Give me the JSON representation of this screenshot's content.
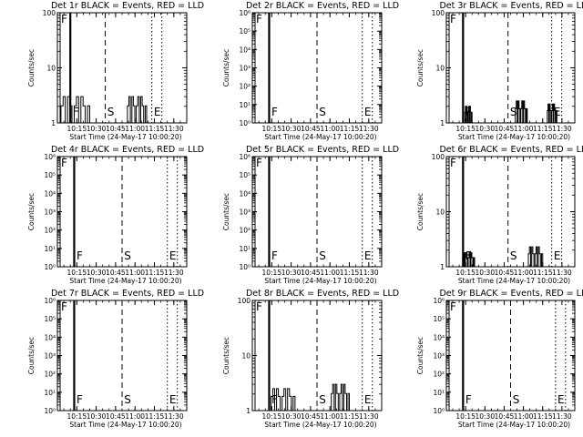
{
  "chart_data": [
    {
      "type": "line",
      "title": "Det 1r BLACK = Events, RED = LLD",
      "scale": "log",
      "ylim": [
        1,
        100
      ],
      "ytick_labels": [
        "1",
        "10",
        "100"
      ],
      "xtick_labels": [
        "10:15",
        "10:30",
        "10:45",
        "11:00",
        "11:15",
        "11:30"
      ],
      "xlabel": "Start Time (24-May-17 10:00:20)",
      "ylabel": "Counts/sec",
      "markers": [
        {
          "label": "F",
          "t": "10:10"
        },
        {
          "label": "S",
          "t": "10:37"
        },
        {
          "label": "E",
          "t": "11:13"
        }
      ],
      "bursts": [
        {
          "t0": "10:01",
          "t1": "10:25",
          "level": 3
        },
        {
          "t0": "10:53",
          "t1": "11:09",
          "level": 3
        }
      ]
    },
    {
      "type": "line",
      "title": "Det 2r BLACK = Events, RED = LLD",
      "scale": "log",
      "ylim": [
        1,
        1000000
      ],
      "ytick_labels": [
        "10⁰",
        "10¹",
        "10²",
        "10³",
        "10⁴",
        "10⁵",
        "10⁶"
      ],
      "xtick_labels": [
        "10:15",
        "10:30",
        "10:45",
        "11:00",
        "11:15",
        "11:30"
      ],
      "xlabel": "Start Time (24-May-17 10:00:20)",
      "ylabel": "Counts/sec",
      "markers": [
        {
          "label": "F",
          "t": "10:13"
        },
        {
          "label": "S",
          "t": "10:50"
        },
        {
          "label": "E",
          "t": "11:25"
        }
      ],
      "bursts": []
    },
    {
      "type": "line",
      "title": "Det 3r BLACK = Events, RED = LLD",
      "scale": "log",
      "ylim": [
        1,
        100
      ],
      "ytick_labels": [
        "1",
        "10",
        "100"
      ],
      "xtick_labels": [
        "10:15",
        "10:30",
        "10:45",
        "11:00",
        "11:15",
        "11:30"
      ],
      "xlabel": "Start Time (24-May-17 10:00:20)",
      "ylabel": "Counts/sec",
      "markers": [
        {
          "label": "F",
          "t": "10:13"
        },
        {
          "label": "S",
          "t": "10:48"
        },
        {
          "label": "E",
          "t": "11:22"
        }
      ],
      "bursts": [
        {
          "t0": "10:14",
          "t1": "10:20",
          "level": 2
        },
        {
          "t0": "10:53",
          "t1": "11:03",
          "level": 2.5
        },
        {
          "t0": "11:18",
          "t1": "11:26",
          "level": 2.2
        }
      ]
    },
    {
      "type": "line",
      "title": "Det 4r BLACK = Events, RED = LLD",
      "scale": "log",
      "ylim": [
        1,
        1000000
      ],
      "ytick_labels": [
        "10⁰",
        "10¹",
        "10²",
        "10³",
        "10⁴",
        "10⁵",
        "10⁶"
      ],
      "xtick_labels": [
        "10:15",
        "10:30",
        "10:45",
        "11:00",
        "11:15",
        "11:30"
      ],
      "xlabel": "Start Time (24-May-17 10:00:20)",
      "ylabel": "Counts/sec",
      "markers": [
        {
          "label": "F",
          "t": "10:13"
        },
        {
          "label": "S",
          "t": "10:50"
        },
        {
          "label": "E",
          "t": "11:25"
        }
      ],
      "bursts": []
    },
    {
      "type": "line",
      "title": "Det 5r BLACK = Events, RED = LLD",
      "scale": "log",
      "ylim": [
        1,
        1000000
      ],
      "ytick_labels": [
        "10⁰",
        "10¹",
        "10²",
        "10³",
        "10⁴",
        "10⁵",
        "10⁶"
      ],
      "xtick_labels": [
        "10:15",
        "10:30",
        "10:45",
        "11:00",
        "11:15",
        "11:30"
      ],
      "xlabel": "Start Time (24-May-17 10:00:20)",
      "ylabel": "Counts/sec",
      "markers": [
        {
          "label": "F",
          "t": "10:13"
        },
        {
          "label": "S",
          "t": "10:50"
        },
        {
          "label": "E",
          "t": "11:25"
        }
      ],
      "bursts": []
    },
    {
      "type": "line",
      "title": "Det 6r BLACK = Events, RED = LLD",
      "scale": "log",
      "ylim": [
        1,
        100
      ],
      "ytick_labels": [
        "1",
        "10",
        "100"
      ],
      "xtick_labels": [
        "10:15",
        "10:30",
        "10:45",
        "11:00",
        "11:15",
        "11:30"
      ],
      "xlabel": "Start Time (24-May-17 10:00:20)",
      "ylabel": "Counts/sec",
      "markers": [
        {
          "label": "F",
          "t": "10:13"
        },
        {
          "label": "S",
          "t": "10:48"
        },
        {
          "label": "E",
          "t": "11:22"
        }
      ],
      "bursts": [
        {
          "t0": "10:12",
          "t1": "10:22",
          "level": 1.8
        },
        {
          "t0": "11:03",
          "t1": "11:15",
          "level": 2.3
        }
      ]
    },
    {
      "type": "line",
      "title": "Det 7r BLACK = Events, RED = LLD",
      "scale": "log",
      "ylim": [
        1,
        1000000
      ],
      "ytick_labels": [
        "10⁰",
        "10¹",
        "10²",
        "10³",
        "10⁴",
        "10⁵",
        "10⁶"
      ],
      "xtick_labels": [
        "10:15",
        "10:30",
        "10:45",
        "11:00",
        "11:15",
        "11:30"
      ],
      "xlabel": "Start Time (24-May-17 10:00:20)",
      "ylabel": "Counts/sec",
      "markers": [
        {
          "label": "F",
          "t": "10:13"
        },
        {
          "label": "S",
          "t": "10:50"
        },
        {
          "label": "E",
          "t": "11:25"
        }
      ],
      "bursts": []
    },
    {
      "type": "line",
      "title": "Det 8r BLACK = Events, RED = LLD",
      "scale": "log",
      "ylim": [
        1,
        100
      ],
      "ytick_labels": [
        "1",
        "10",
        "100"
      ],
      "xtick_labels": [
        "10:15",
        "10:30",
        "10:45",
        "11:00",
        "11:15",
        "11:30"
      ],
      "xlabel": "Start Time (24-May-17 10:00:20)",
      "ylabel": "Counts/sec",
      "markers": [
        {
          "label": "F",
          "t": "10:13"
        },
        {
          "label": "S",
          "t": "10:50"
        },
        {
          "label": "E",
          "t": "11:25"
        }
      ],
      "bursts": [
        {
          "t0": "10:13",
          "t1": "10:33",
          "level": 2.5
        },
        {
          "t0": "11:00",
          "t1": "11:15",
          "level": 3
        }
      ]
    },
    {
      "type": "line",
      "title": "Det 9r BLACK = Events, RED = LLD",
      "scale": "log",
      "ylim": [
        1,
        1000000
      ],
      "ytick_labels": [
        "10⁰",
        "10¹",
        "10²",
        "10³",
        "10⁴",
        "10⁵",
        "10⁶"
      ],
      "xtick_labels": [
        "10:15",
        "10:30",
        "10:45",
        "11:00",
        "11:15",
        "11:30"
      ],
      "xlabel": "Start Time (24-May-17 10:00:20)",
      "ylabel": "Counts/sec",
      "markers": [
        {
          "label": "F",
          "t": "10:13"
        },
        {
          "label": "S",
          "t": "10:50"
        },
        {
          "label": "E",
          "t": "11:25"
        }
      ],
      "bursts": []
    }
  ]
}
